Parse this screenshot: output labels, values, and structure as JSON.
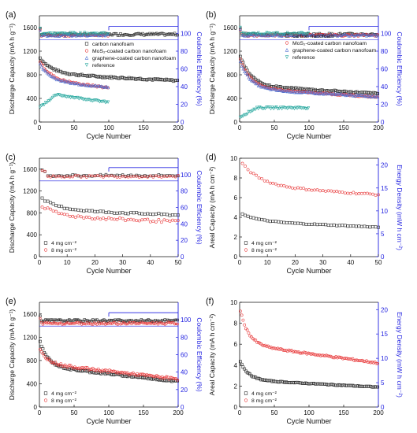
{
  "figure": {
    "colors": {
      "black": "#2b2b2b",
      "red": "#e8393a",
      "blue": "#3a3ad8",
      "green": "#4f6fd0",
      "cyan": "#2aa9a0",
      "axisblue": "#1f1fe0"
    }
  },
  "chart_data": [
    {
      "id": "a",
      "type": "scatter",
      "label": "(a)",
      "xlabel": "Cycle Number",
      "ylabel": "Discharge Capacity (mA h g⁻¹)",
      "y2label": "Coulombic Efficiency (%)",
      "xlim": [
        0,
        200
      ],
      "ylim": [
        0,
        1800
      ],
      "y2lim": [
        0,
        120
      ],
      "xticks": [
        "0",
        "50",
        "100",
        "150",
        "200"
      ],
      "yticks": [
        "0",
        "400",
        "800",
        "1200",
        "1600"
      ],
      "y2ticks": [
        "0",
        "20",
        "40",
        "60",
        "80",
        "100"
      ],
      "legend": [
        "carbon nanofoam",
        "MoS₂-coated carbon nanofoam",
        "graphene-coated carbon nanofoam",
        "reference"
      ],
      "legend_pos": "center-right",
      "bracket": {
        "y": 100,
        "from": 100,
        "to": 200
      },
      "series": [
        {
          "name": "carbon nanofoam",
          "color": "black",
          "marker": "square",
          "n": 200,
          "start": 1100,
          "mid": 820,
          "end": 700,
          "tau": 18,
          "noise": 15,
          "ce": 99
        },
        {
          "name": "MoS₂-coated carbon nanofoam",
          "color": "red",
          "marker": "circle",
          "n": 100,
          "start": 1050,
          "mid": 720,
          "end": 580,
          "tau": 15,
          "noise": 15,
          "ce": 98
        },
        {
          "name": "graphene-coated carbon nanofoam",
          "color": "green",
          "marker": "triangle-up",
          "n": 100,
          "start": 1000,
          "mid": 700,
          "end": 590,
          "tau": 15,
          "noise": 12,
          "ce": 98
        },
        {
          "name": "reference",
          "color": "cyan",
          "marker": "triangle-down",
          "n": 100,
          "start": 250,
          "mid": 460,
          "end": 330,
          "tau": 10,
          "noise": 12,
          "rise": true,
          "ce": 100
        }
      ]
    },
    {
      "id": "b",
      "type": "scatter",
      "label": "(b)",
      "xlabel": "Cycle Number",
      "ylabel": "Discharge Capacity (mA h g⁻¹)",
      "y2label": "Coulombic Efficiency (%)",
      "xlim": [
        0,
        200
      ],
      "ylim": [
        0,
        1800
      ],
      "y2lim": [
        0,
        120
      ],
      "xticks": [
        "0",
        "50",
        "100",
        "150",
        "200"
      ],
      "yticks": [
        "0",
        "400",
        "800",
        "1200",
        "1600"
      ],
      "y2ticks": [
        "0",
        "20",
        "40",
        "60",
        "80",
        "100"
      ],
      "legend": [
        "carbon nanofoam",
        "MoS₂-coated carbon nanofoam",
        "graphene-coated carbon nanofoam",
        "reference"
      ],
      "legend_pos": "top-right",
      "bracket": {
        "y": 100,
        "from": 100,
        "to": 200
      },
      "series": [
        {
          "name": "carbon nanofoam",
          "color": "black",
          "marker": "square",
          "n": 200,
          "start": 1150,
          "mid": 620,
          "end": 480,
          "tau": 15,
          "noise": 15,
          "ce": 99
        },
        {
          "name": "MoS₂-coated carbon nanofoam",
          "color": "red",
          "marker": "circle",
          "n": 200,
          "start": 1100,
          "mid": 580,
          "end": 420,
          "tau": 15,
          "noise": 12,
          "ce": 98
        },
        {
          "name": "graphene-coated carbon nanofoam",
          "color": "green",
          "marker": "triangle-up",
          "n": 200,
          "start": 1050,
          "mid": 560,
          "end": 430,
          "tau": 15,
          "noise": 12,
          "ce": 98
        },
        {
          "name": "reference",
          "color": "cyan",
          "marker": "triangle-down",
          "n": 100,
          "start": 80,
          "mid": 240,
          "end": 240,
          "tau": 10,
          "noise": 15,
          "rise": true,
          "ce": 100
        }
      ]
    },
    {
      "id": "c",
      "type": "scatter",
      "label": "(c)",
      "xlabel": "Cycle Number",
      "ylabel": "Discharge Capacity (mA h g⁻¹)",
      "y2label": "Coulombic Efficiency (%)",
      "xlim": [
        0,
        50
      ],
      "ylim": [
        0,
        1800
      ],
      "y2lim": [
        0,
        120
      ],
      "xticks": [
        "0",
        "10",
        "20",
        "30",
        "40",
        "50"
      ],
      "yticks": [
        "0",
        "400",
        "800",
        "1200",
        "1600"
      ],
      "y2ticks": [
        "0",
        "20",
        "40",
        "60",
        "80",
        "100"
      ],
      "legend": [
        "4 mg cm⁻²",
        "8 mg cm⁻²"
      ],
      "legend_pos": "bottom-left",
      "bracket": {
        "y": 100,
        "from": 25,
        "to": 50
      },
      "series": [
        {
          "name": "4 mg cm⁻²",
          "color": "black",
          "marker": "square",
          "n": 50,
          "start": 1100,
          "mid": 860,
          "end": 760,
          "tau": 6,
          "noise": 15,
          "ce": 99
        },
        {
          "name": "8 mg cm⁻²",
          "color": "red",
          "marker": "circle",
          "n": 50,
          "start": 960,
          "mid": 740,
          "end": 640,
          "tau": 6,
          "noise": 25,
          "ce": 98
        }
      ]
    },
    {
      "id": "d",
      "type": "scatter",
      "label": "(d)",
      "xlabel": "Cycle Number",
      "ylabel": "Areal Capacity (mA h cm⁻²)",
      "y2label": "Energy Density (mW h cm⁻²)",
      "xlim": [
        0,
        50
      ],
      "ylim": [
        0,
        10
      ],
      "y2lim": [
        0,
        21.5
      ],
      "xticks": [
        "0",
        "10",
        "20",
        "30",
        "40",
        "50"
      ],
      "yticks": [
        "0",
        "2",
        "4",
        "6",
        "8",
        "10"
      ],
      "y2ticks": [
        "0",
        "5",
        "10",
        "15",
        "20"
      ],
      "legend": [
        "4 mg cm⁻²",
        "8 mg cm⁻²"
      ],
      "legend_pos": "bottom-left",
      "series": [
        {
          "name": "4 mg cm⁻²",
          "color": "black",
          "marker": "square",
          "n": 50,
          "start": 4.5,
          "mid": 3.6,
          "end": 3.0,
          "tau": 6,
          "noise": 0.04
        },
        {
          "name": "8 mg cm⁻²",
          "color": "red",
          "marker": "circle",
          "n": 50,
          "start": 9.8,
          "mid": 7.2,
          "end": 6.3,
          "tau": 7,
          "noise": 0.08
        }
      ]
    },
    {
      "id": "e",
      "type": "scatter",
      "label": "(e)",
      "xlabel": "Cycle Number",
      "ylabel": "Discharge Capacity (mA h g⁻¹)",
      "y2label": "Coulombic Efficiency (%)",
      "xlim": [
        0,
        200
      ],
      "ylim": [
        0,
        1800
      ],
      "y2lim": [
        0,
        120
      ],
      "xticks": [
        "0",
        "50",
        "100",
        "150",
        "200"
      ],
      "yticks": [
        "0",
        "400",
        "800",
        "1200",
        "1600"
      ],
      "y2ticks": [
        "0",
        "20",
        "40",
        "60",
        "80",
        "100"
      ],
      "legend": [
        "4 mg cm⁻²",
        "8 mg cm⁻²"
      ],
      "legend_pos": "bottom-left",
      "bracket": {
        "y": 100,
        "from": 100,
        "to": 200
      },
      "series": [
        {
          "name": "4 mg cm⁻²",
          "color": "black",
          "marker": "square",
          "n": 200,
          "start": 1150,
          "mid": 700,
          "end": 440,
          "tau": 12,
          "noise": 15,
          "ce": 99
        },
        {
          "name": "8 mg cm⁻²",
          "color": "red",
          "marker": "circle",
          "n": 200,
          "start": 1000,
          "mid": 750,
          "end": 480,
          "tau": 12,
          "noise": 20,
          "ce": 96
        }
      ]
    },
    {
      "id": "f",
      "type": "scatter",
      "label": "(f)",
      "xlabel": "Cycle Number",
      "ylabel": "Areal Capacity (mA h cm⁻²)",
      "y2label": "Energy Density (mW h cm⁻²)",
      "xlim": [
        0,
        200
      ],
      "ylim": [
        0,
        10
      ],
      "y2lim": [
        0,
        21.5
      ],
      "xticks": [
        "0",
        "50",
        "100",
        "150",
        "200"
      ],
      "yticks": [
        "0",
        "2",
        "4",
        "6",
        "8",
        "10"
      ],
      "y2ticks": [
        "0",
        "5",
        "10",
        "15",
        "20"
      ],
      "legend": [
        "4 mg cm⁻²",
        "8 mg cm⁻²"
      ],
      "legend_pos": "bottom-left",
      "series": [
        {
          "name": "4 mg cm⁻²",
          "color": "black",
          "marker": "square",
          "n": 200,
          "start": 4.5,
          "mid": 2.6,
          "end": 1.9,
          "tau": 12,
          "noise": 0.04
        },
        {
          "name": "8 mg cm⁻²",
          "color": "red",
          "marker": "circle",
          "n": 200,
          "start": 9.5,
          "mid": 6.0,
          "end": 4.2,
          "tau": 12,
          "noise": 0.08
        }
      ]
    }
  ]
}
